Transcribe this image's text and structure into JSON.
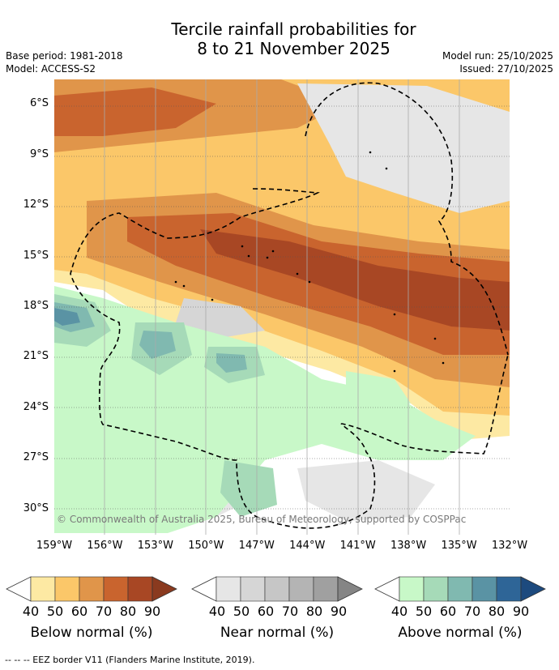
{
  "header": {
    "title_line1": "Tercile rainfall probabilities for",
    "title_line2": "8 to 21 November 2025",
    "base_period": "Base period: 1981-2018",
    "model": "Model: ACCESS-S2",
    "model_run": "Model run: 25/10/2025",
    "issued": "Issued: 27/10/2025"
  },
  "copyright": "© Commonwealth of Australia 2025, Bureau of Meteorology, supported by COSPPac",
  "footnote": "--  --  -- EEZ border V11 (Flanders Marine Institute, 2019).",
  "chart_data": {
    "type": "heatmap",
    "title": "Tercile rainfall probabilities for 8 to 21 November 2025",
    "x_ticks": [
      "159°W",
      "156°W",
      "153°W",
      "150°W",
      "147°W",
      "144°W",
      "141°W",
      "138°W",
      "135°W",
      "132°W"
    ],
    "y_ticks": [
      "6°S",
      "9°S",
      "12°S",
      "15°S",
      "18°S",
      "21°S",
      "24°S",
      "27°S",
      "30°S"
    ],
    "x_range": [
      -159,
      -132
    ],
    "y_range": [
      -31.5,
      -4.5
    ],
    "legends": [
      {
        "name": "Below normal (%)",
        "ticks": [
          "40",
          "50",
          "60",
          "70",
          "80",
          "90"
        ],
        "colors": [
          "#fde9a3",
          "#fbc769",
          "#e0954a",
          "#c9642e",
          "#a84724",
          "#8a3a1f"
        ]
      },
      {
        "name": "Near normal (%)",
        "ticks": [
          "40",
          "50",
          "60",
          "70",
          "80",
          "90"
        ],
        "colors": [
          "#e6e6e6",
          "#d6d6d6",
          "#c6c6c6",
          "#b4b4b4",
          "#a0a0a0",
          "#858585"
        ]
      },
      {
        "name": "Above normal (%)",
        "ticks": [
          "40",
          "50",
          "60",
          "70",
          "80",
          "90"
        ],
        "colors": [
          "#c8f8c8",
          "#a6dab8",
          "#80b9b0",
          "#5a93a4",
          "#2e6597",
          "#1d4a7e"
        ]
      }
    ]
  }
}
